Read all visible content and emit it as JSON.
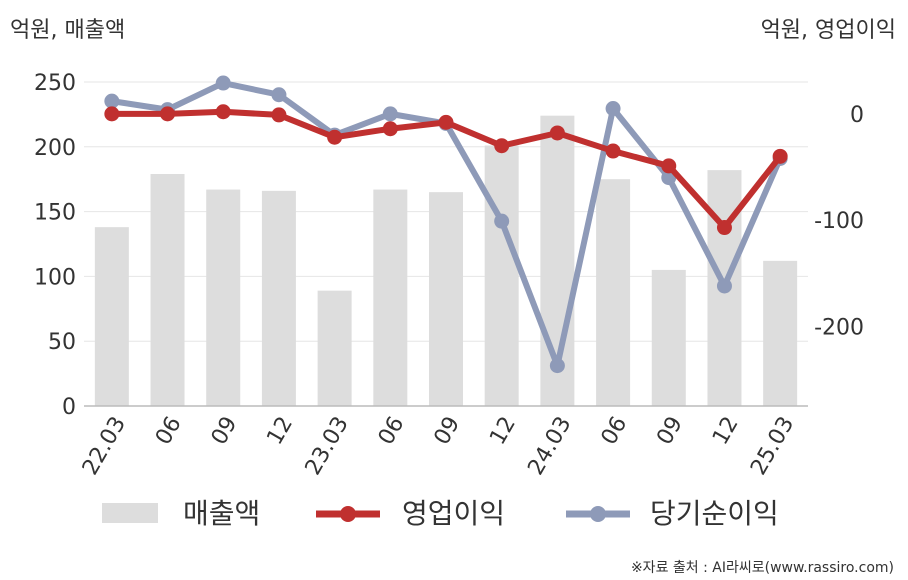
{
  "chart_data": {
    "type": "bar+line",
    "categories": [
      "22.03",
      "06",
      "09",
      "12",
      "23.03",
      "06",
      "09",
      "12",
      "24.03",
      "06",
      "09",
      "12",
      "25.03"
    ],
    "left_axis": {
      "unit": "억원, 매출액",
      "ylim": [
        0,
        250
      ],
      "ticks": [
        0,
        50,
        100,
        150,
        200,
        250
      ]
    },
    "right_axis": {
      "unit": "억원, 영업이익",
      "ylim": [
        -275,
        30
      ],
      "ticks": [
        0,
        -100,
        -200
      ]
    },
    "series": [
      {
        "name": "매출액",
        "type": "bar",
        "axis": "left",
        "color": "#dddddd",
        "values": [
          138,
          179,
          167,
          166,
          89,
          167,
          165,
          201,
          224,
          175,
          105,
          182,
          112
        ]
      },
      {
        "name": "영업이익",
        "type": "line",
        "axis": "right",
        "color": "#c0302f",
        "values": [
          0,
          0,
          2,
          -1,
          -22,
          -14,
          -8,
          -30,
          -18,
          -35,
          -49,
          -107,
          -40
        ]
      },
      {
        "name": "당기순이익",
        "type": "line",
        "axis": "right",
        "color": "#8e9ab8",
        "values": [
          12,
          4,
          29,
          18,
          -20,
          0,
          -9,
          -101,
          -237,
          5,
          -60,
          -162,
          -42
        ]
      }
    ],
    "grid": true,
    "legend_position": "bottom"
  },
  "source": "※자료 출처 : AI라씨로(www.rassiro.com)"
}
